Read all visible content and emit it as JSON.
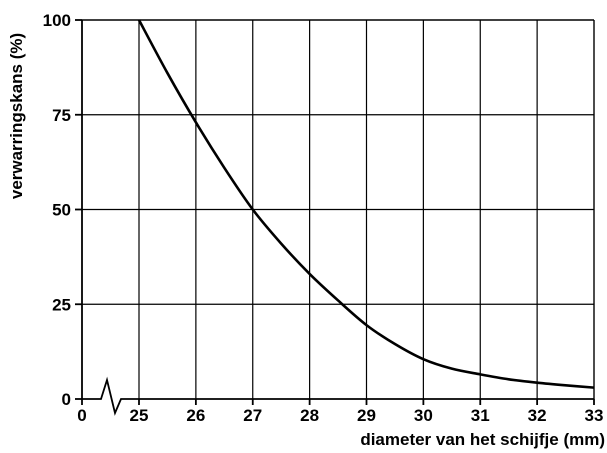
{
  "chart_data": {
    "type": "line",
    "title": "",
    "xlabel": "diameter van het schijfje (mm)",
    "ylabel": "verwarringskans (%)",
    "x_ticks": [
      "0",
      "25",
      "26",
      "27",
      "28",
      "29",
      "30",
      "31",
      "32",
      "33"
    ],
    "y_ticks": [
      "0",
      "25",
      "50",
      "75",
      "100"
    ],
    "xlim": [
      25,
      33
    ],
    "ylim": [
      0,
      100
    ],
    "x_axis_break": true,
    "grid": true,
    "series": [
      {
        "x": [
          25,
          25.5,
          26,
          26.5,
          27,
          27.5,
          28,
          28.5,
          29,
          29.5,
          30,
          30.5,
          31,
          31.5,
          32,
          32.5,
          33
        ],
        "values": [
          100,
          86,
          73,
          61,
          50,
          41,
          33,
          26,
          19.5,
          14.5,
          10.5,
          8,
          6.5,
          5.2,
          4.3,
          3.6,
          3
        ]
      }
    ]
  }
}
